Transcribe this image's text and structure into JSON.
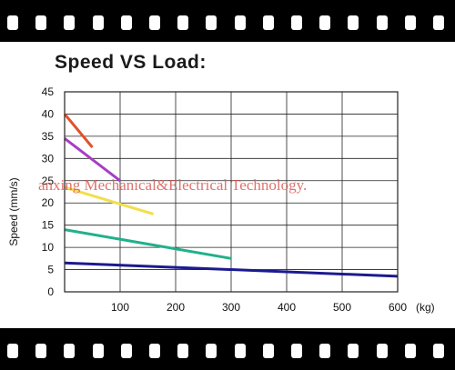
{
  "chart_data": {
    "type": "line",
    "title": "Speed VS Load",
    "title_suffix": ":",
    "ylabel": "Speed (mm/s)",
    "xunit": "(kg)",
    "xlim": [
      0,
      600
    ],
    "ylim": [
      0,
      45
    ],
    "xticks": [
      100,
      200,
      300,
      400,
      500,
      600
    ],
    "yticks": [
      0,
      5,
      10,
      15,
      20,
      25,
      30,
      35,
      40,
      45
    ],
    "grid": true,
    "series": [
      {
        "color": "#e0512a",
        "x": [
          0,
          50
        ],
        "y": [
          40,
          32.5
        ]
      },
      {
        "color": "#a63ec4",
        "x": [
          0,
          100
        ],
        "y": [
          34.5,
          25
        ]
      },
      {
        "color": "#f2df4a",
        "x": [
          0,
          160
        ],
        "y": [
          23.5,
          17.5
        ]
      },
      {
        "color": "#22b08a",
        "x": [
          0,
          300
        ],
        "y": [
          14,
          7.5
        ]
      },
      {
        "color": "#1c1a8f",
        "x": [
          0,
          600
        ],
        "y": [
          6.5,
          3.5
        ]
      }
    ]
  },
  "watermark": "anxing Mechanical&Electrical Technology."
}
